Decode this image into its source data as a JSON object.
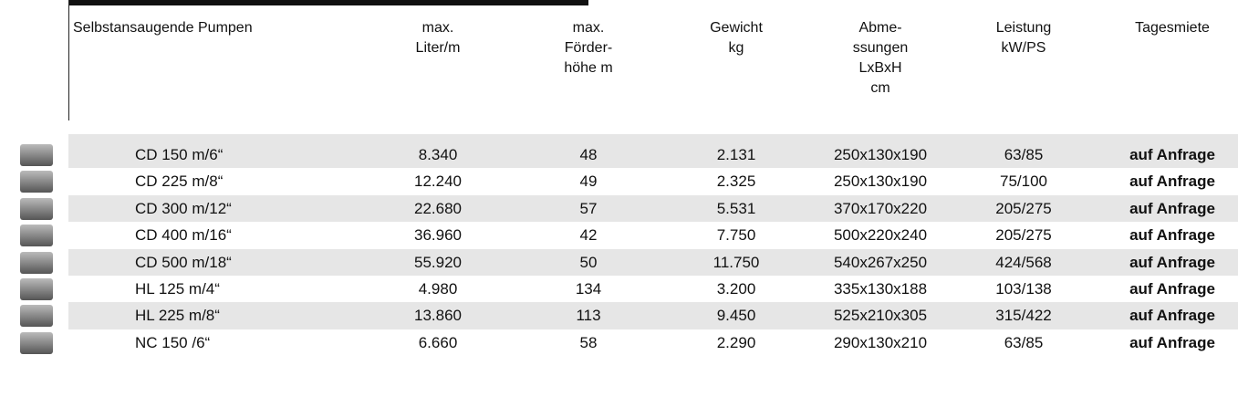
{
  "table": {
    "header": [
      "Selbstansaugende Pumpen",
      "max.\nLiter/m",
      "max.\nFörder-\nhöhe m",
      "Gewicht\nkg",
      "Abme-\nssungen\nLxBxH\ncm",
      "Leistung\nkW/PS",
      "Tagesmiete"
    ],
    "rows": [
      [
        "CD 150 m/6“",
        "8.340",
        "48",
        "2.131",
        "250x130x190",
        "63/85",
        "auf Anfrage"
      ],
      [
        "CD 225 m/8“",
        "12.240",
        "49",
        "2.325",
        "250x130x190",
        "75/100",
        "auf Anfrage"
      ],
      [
        "CD 300 m/12“",
        "22.680",
        "57",
        "5.531",
        "370x170x220",
        "205/275",
        "auf Anfrage"
      ],
      [
        "CD 400 m/16“",
        "36.960",
        "42",
        "7.750",
        "500x220x240",
        "205/275",
        "auf Anfrage"
      ],
      [
        "CD 500 m/18“",
        "55.920",
        "50",
        "11.750",
        "540x267x250",
        "424/568",
        "auf Anfrage"
      ],
      [
        "HL 125 m/4“",
        "4.980",
        "134",
        "3.200",
        "335x130x188",
        "103/138",
        "auf Anfrage"
      ],
      [
        "HL 225 m/8“",
        "13.860",
        "113",
        "9.450",
        "525x210x305",
        "315/422",
        "auf Anfrage"
      ],
      [
        "NC 150 /6“",
        "6.660",
        "58",
        "2.290",
        "290x130x210",
        "63/85",
        "auf Anfrage"
      ]
    ]
  }
}
